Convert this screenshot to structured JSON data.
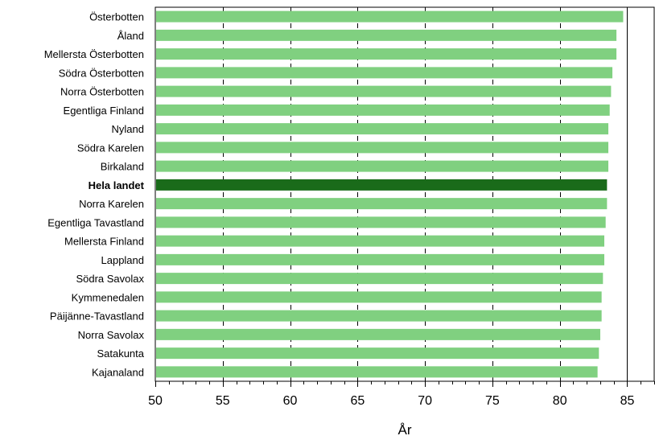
{
  "chart_data": {
    "type": "bar",
    "orientation": "horizontal",
    "categories": [
      "Österbotten",
      "Åland",
      "Mellersta Österbotten",
      "Södra Österbotten",
      "Norra Österbotten",
      "Egentliga Finland",
      "Nyland",
      "Södra Karelen",
      "Birkaland",
      "Hela landet",
      "Norra Karelen",
      "Egentliga Tavastland",
      "Mellersta Finland",
      "Lappland",
      "Södra Savolax",
      "Kymmenedalen",
      "Päijänne-Tavastland",
      "Norra Savolax",
      "Satakunta",
      "Kajanaland"
    ],
    "values": [
      84.7,
      84.2,
      84.2,
      83.9,
      83.8,
      83.7,
      83.6,
      83.6,
      83.6,
      83.5,
      83.5,
      83.4,
      83.3,
      83.3,
      83.2,
      83.1,
      83.1,
      83.0,
      82.9,
      82.8
    ],
    "highlight_category": "Hela landet",
    "colors": {
      "bar": "#80d080",
      "highlight": "#1a6b1a",
      "grid": "#000000",
      "frame": "#000000"
    },
    "xlim": [
      50,
      87
    ],
    "xticks": [
      "50",
      "55",
      "60",
      "65",
      "70",
      "75",
      "80",
      "85"
    ],
    "xlabel": "År",
    "title": "",
    "grid": true,
    "legend": "none"
  }
}
